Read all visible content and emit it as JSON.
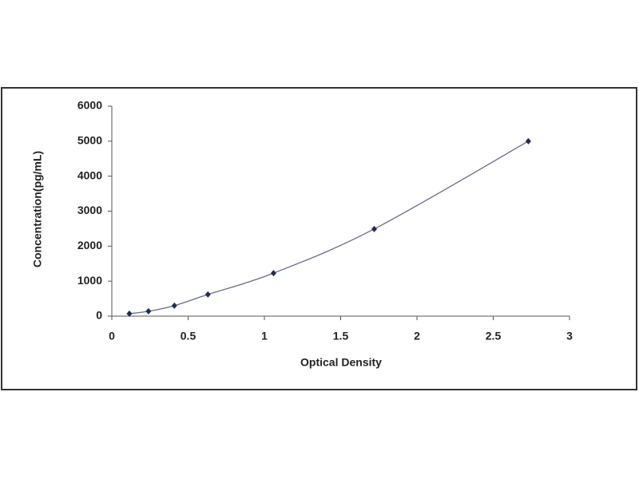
{
  "chart_data": {
    "type": "line",
    "x_label": "Optical Density",
    "y_label": "Concentration(pg/mL)",
    "x": [
      0.115,
      0.24,
      0.41,
      0.63,
      1.06,
      1.72,
      2.73
    ],
    "series": [
      {
        "color": "#1f2a5c",
        "line_color": "#6a6a90",
        "values": [
          70,
          140,
          300,
          620,
          1230,
          2490,
          5000
        ]
      }
    ],
    "xlim": [
      0,
      3
    ],
    "xticks": [
      0,
      0.5,
      1,
      1.5,
      2,
      2.5,
      3
    ],
    "ylim": [
      0,
      6000
    ],
    "yticks": [
      0,
      1000,
      2000,
      3000,
      4000,
      5000,
      6000
    ],
    "grid": false
  }
}
